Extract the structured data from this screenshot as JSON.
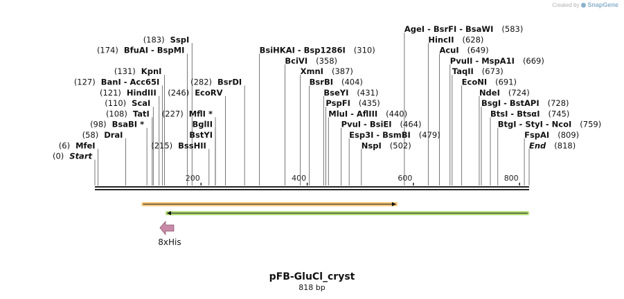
{
  "credit": {
    "prefix": "Created by",
    "brand": "SnapGene"
  },
  "map": {
    "name": "pFB-GluCl_cryst",
    "length_label": "818 bp",
    "length_bp": 818
  },
  "ruler": {
    "ticks": [
      200,
      400,
      600,
      800
    ]
  },
  "sites": [
    {
      "pos": 583,
      "label_pos": 583,
      "row": 0,
      "col": "right",
      "names": [
        "AgeI",
        "BsrFI",
        "BsaWI"
      ],
      "num": "(583)"
    },
    {
      "pos": 628,
      "label_pos": 628,
      "row": 1,
      "col": "right",
      "names": [
        "HincII"
      ],
      "num": "(628)"
    },
    {
      "pos": 649,
      "label_pos": 649,
      "row": 2,
      "col": "right",
      "names": [
        "AcuI"
      ],
      "num": "(649)"
    },
    {
      "pos": 669,
      "label_pos": 669,
      "row": 3,
      "col": "right",
      "names": [
        "PvuII",
        "MspA1I"
      ],
      "num": "(669)"
    },
    {
      "pos": 673,
      "label_pos": 673,
      "row": 4,
      "col": "right",
      "names": [
        "TaqII"
      ],
      "num": "(673)"
    },
    {
      "pos": 691,
      "label_pos": 691,
      "row": 5,
      "col": "right",
      "names": [
        "EcoNI"
      ],
      "num": "(691)"
    },
    {
      "pos": 724,
      "label_pos": 724,
      "row": 6,
      "col": "right",
      "names": [
        "NdeI"
      ],
      "num": "(724)"
    },
    {
      "pos": 728,
      "label_pos": 728,
      "row": 7,
      "col": "right",
      "names": [
        "BsgI",
        "BstAPI"
      ],
      "num": "(728)"
    },
    {
      "pos": 745,
      "label_pos": 745,
      "row": 8,
      "col": "right",
      "names": [
        "BtsI",
        "BtsαI"
      ],
      "num": "(745)"
    },
    {
      "pos": 759,
      "label_pos": 759,
      "row": 9,
      "col": "right",
      "names": [
        "BtgI",
        "StyI",
        "NcoI"
      ],
      "num": "(759)"
    },
    {
      "pos": 809,
      "label_pos": 809,
      "row": 10,
      "col": "right",
      "names": [
        "FspAI"
      ],
      "num": "(809)"
    },
    {
      "pos": 818,
      "label_pos": 818,
      "row": 11,
      "col": "right",
      "names": [
        "End"
      ],
      "num": "(818)",
      "italic": true
    },
    {
      "pos": 310,
      "label_pos": 310,
      "row": 2,
      "col": "mid",
      "names": [
        "BsiHKAI",
        "Bsp1286I"
      ],
      "num": "(310)"
    },
    {
      "pos": 358,
      "label_pos": 358,
      "row": 3,
      "col": "mid",
      "names": [
        "BciVI"
      ],
      "num": "(358)"
    },
    {
      "pos": 387,
      "label_pos": 387,
      "row": 4,
      "col": "mid",
      "names": [
        "XmnI"
      ],
      "num": "(387)"
    },
    {
      "pos": 404,
      "label_pos": 404,
      "row": 5,
      "col": "mid",
      "names": [
        "BsrBI"
      ],
      "num": "(404)"
    },
    {
      "pos": 431,
      "label_pos": 431,
      "row": 6,
      "col": "mid",
      "names": [
        "BseYI"
      ],
      "num": "(431)"
    },
    {
      "pos": 435,
      "label_pos": 435,
      "row": 7,
      "col": "mid",
      "names": [
        "PspFI"
      ],
      "num": "(435)"
    },
    {
      "pos": 440,
      "label_pos": 440,
      "row": 8,
      "col": "mid",
      "names": [
        "MluI",
        "AflIII"
      ],
      "num": "(440)"
    },
    {
      "pos": 464,
      "label_pos": 464,
      "row": 9,
      "col": "mid",
      "names": [
        "PvuI",
        "BsiEI"
      ],
      "num": "(464)"
    },
    {
      "pos": 479,
      "label_pos": 479,
      "row": 10,
      "col": "mid",
      "names": [
        "Esp3I",
        "BsmBI"
      ],
      "num": "(479)"
    },
    {
      "pos": 502,
      "label_pos": 502,
      "row": 11,
      "col": "mid",
      "names": [
        "NspI"
      ],
      "num": "(502)"
    },
    {
      "pos": 183,
      "label_pos": 183,
      "row": 1,
      "col": "upleft",
      "names": [
        "SspI"
      ],
      "num": "(183)"
    },
    {
      "pos": 174,
      "label_pos": 174,
      "row": 2,
      "col": "upleft",
      "names": [
        "BfuAI",
        "BspMI"
      ],
      "num": "(174)"
    },
    {
      "pos": 131,
      "label_pos": 131,
      "row": 4,
      "col": "upleft",
      "names": [
        "KpnI"
      ],
      "num": "(131)"
    },
    {
      "pos": 127,
      "label_pos": 127,
      "row": 5,
      "col": "upleft",
      "names": [
        "BanI",
        "Acc65I"
      ],
      "num": "(127)"
    },
    {
      "pos": 121,
      "label_pos": 121,
      "row": 6,
      "col": "upleft",
      "names": [
        "HindIII"
      ],
      "num": "(121)"
    },
    {
      "pos": 110,
      "label_pos": 110,
      "row": 7,
      "col": "upleft",
      "names": [
        "ScaI"
      ],
      "num": "(110)"
    },
    {
      "pos": 108,
      "label_pos": 108,
      "row": 8,
      "col": "upleft",
      "names": [
        "TatI"
      ],
      "num": "(108)"
    },
    {
      "pos": 98,
      "label_pos": 98,
      "row": 9,
      "col": "upleft",
      "names": [
        "BsaBI *"
      ],
      "num": "(98)"
    },
    {
      "pos": 58,
      "label_pos": 58,
      "row": 10,
      "col": "upleft",
      "names": [
        "DraI"
      ],
      "num": "(58)"
    },
    {
      "pos": 6,
      "label_pos": 6,
      "row": 11,
      "col": "upleft",
      "names": [
        "MfeI"
      ],
      "num": "(6)"
    },
    {
      "pos": 0,
      "label_pos": 0,
      "row": 12,
      "col": "upleft",
      "names": [
        "Start"
      ],
      "num": "(0)",
      "italic": true
    },
    {
      "pos": 282,
      "label_pos": 282,
      "row": 5,
      "col": "innerleft",
      "names": [
        "BsrDI"
      ],
      "num": "(282)"
    },
    {
      "pos": 246,
      "label_pos": 246,
      "row": 6,
      "col": "innerleft",
      "names": [
        "EcoRV"
      ],
      "num": "(246)"
    },
    {
      "pos": 227,
      "label_pos": 227,
      "row": 8,
      "col": "innerleft",
      "names": [
        "MflI *"
      ],
      "num": "(227)"
    },
    {
      "pos": 227,
      "label_pos": 227,
      "row": 9,
      "col": "innerleft",
      "names": [
        "BglII"
      ],
      "num": ""
    },
    {
      "pos": 227,
      "label_pos": 227,
      "row": 10,
      "col": "innerleft",
      "names": [
        "BstYI"
      ],
      "num": ""
    },
    {
      "pos": 215,
      "label_pos": 215,
      "row": 11,
      "col": "innerleft",
      "names": [
        "BssHII"
      ],
      "num": "(215)"
    }
  ],
  "features": [
    {
      "name": "orange-feature",
      "start": 88,
      "end": 570,
      "direction": "forward",
      "color": "#f7c97d",
      "stroke": "#d19a3a"
    },
    {
      "name": "green-feature",
      "start": 133,
      "end": 818,
      "direction": "reverse",
      "color": "#b6e07a",
      "stroke": "#7cb342"
    }
  ],
  "tag": {
    "label": "8xHis",
    "pos": 133,
    "color": "#c98aa8"
  }
}
